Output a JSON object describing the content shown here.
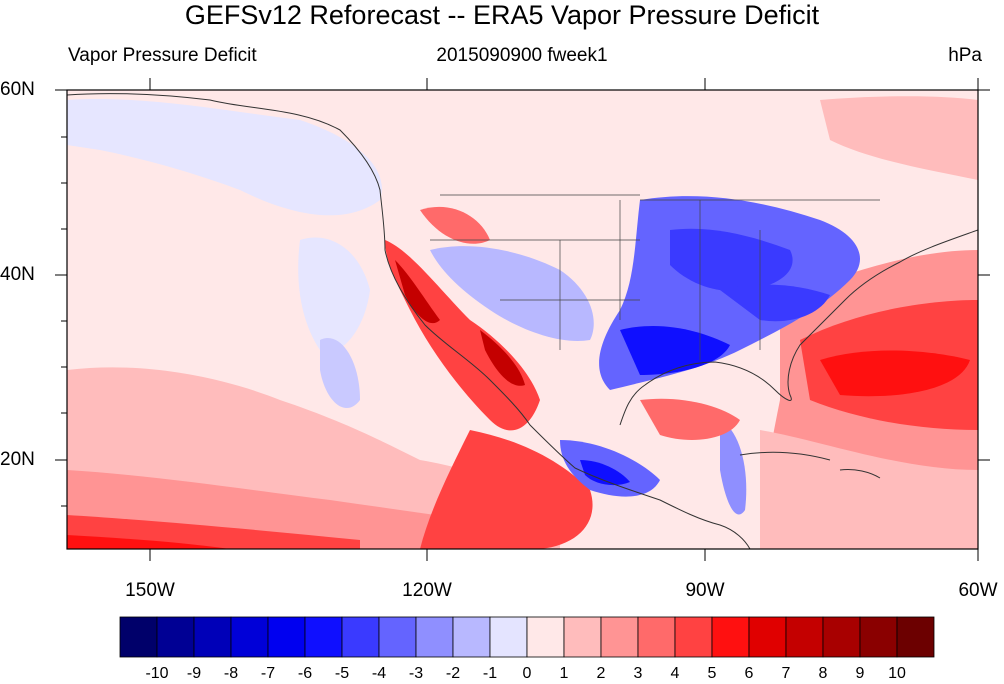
{
  "map": {
    "title": "GEFSv12 Reforecast -- ERA5 Vapor Pressure Deficit",
    "left_subtitle": "Vapor Pressure Deficit",
    "center_subtitle": "2015090900 fweek1",
    "right_subtitle": "hPa",
    "lat_labels": [
      "60N",
      "40N",
      "20N"
    ],
    "lon_labels": [
      "150W",
      "120W",
      "90W",
      "60W"
    ],
    "colorbar_labels": [
      "-10",
      "-9",
      "-8",
      "-7",
      "-6",
      "-5",
      "-4",
      "-3",
      "-2",
      "-1",
      "0",
      "1",
      "2",
      "3",
      "4",
      "5",
      "6",
      "7",
      "8",
      "9",
      "10"
    ],
    "colorbar_colors": [
      "#00006a",
      "#000094",
      "#0000b8",
      "#0000d8",
      "#0000f0",
      "#0f0fff",
      "#3a3aff",
      "#6464ff",
      "#8f8fff",
      "#b8b8ff",
      "#e4e4ff",
      "#ffe8e8",
      "#ffbcbc",
      "#ff9494",
      "#ff6a6a",
      "#ff4242",
      "#ff1010",
      "#e00000",
      "#c40000",
      "#a80000",
      "#8a0000",
      "#6c0000"
    ],
    "ocean_color": "#ffe8e8",
    "coastline_color": "#333333"
  }
}
